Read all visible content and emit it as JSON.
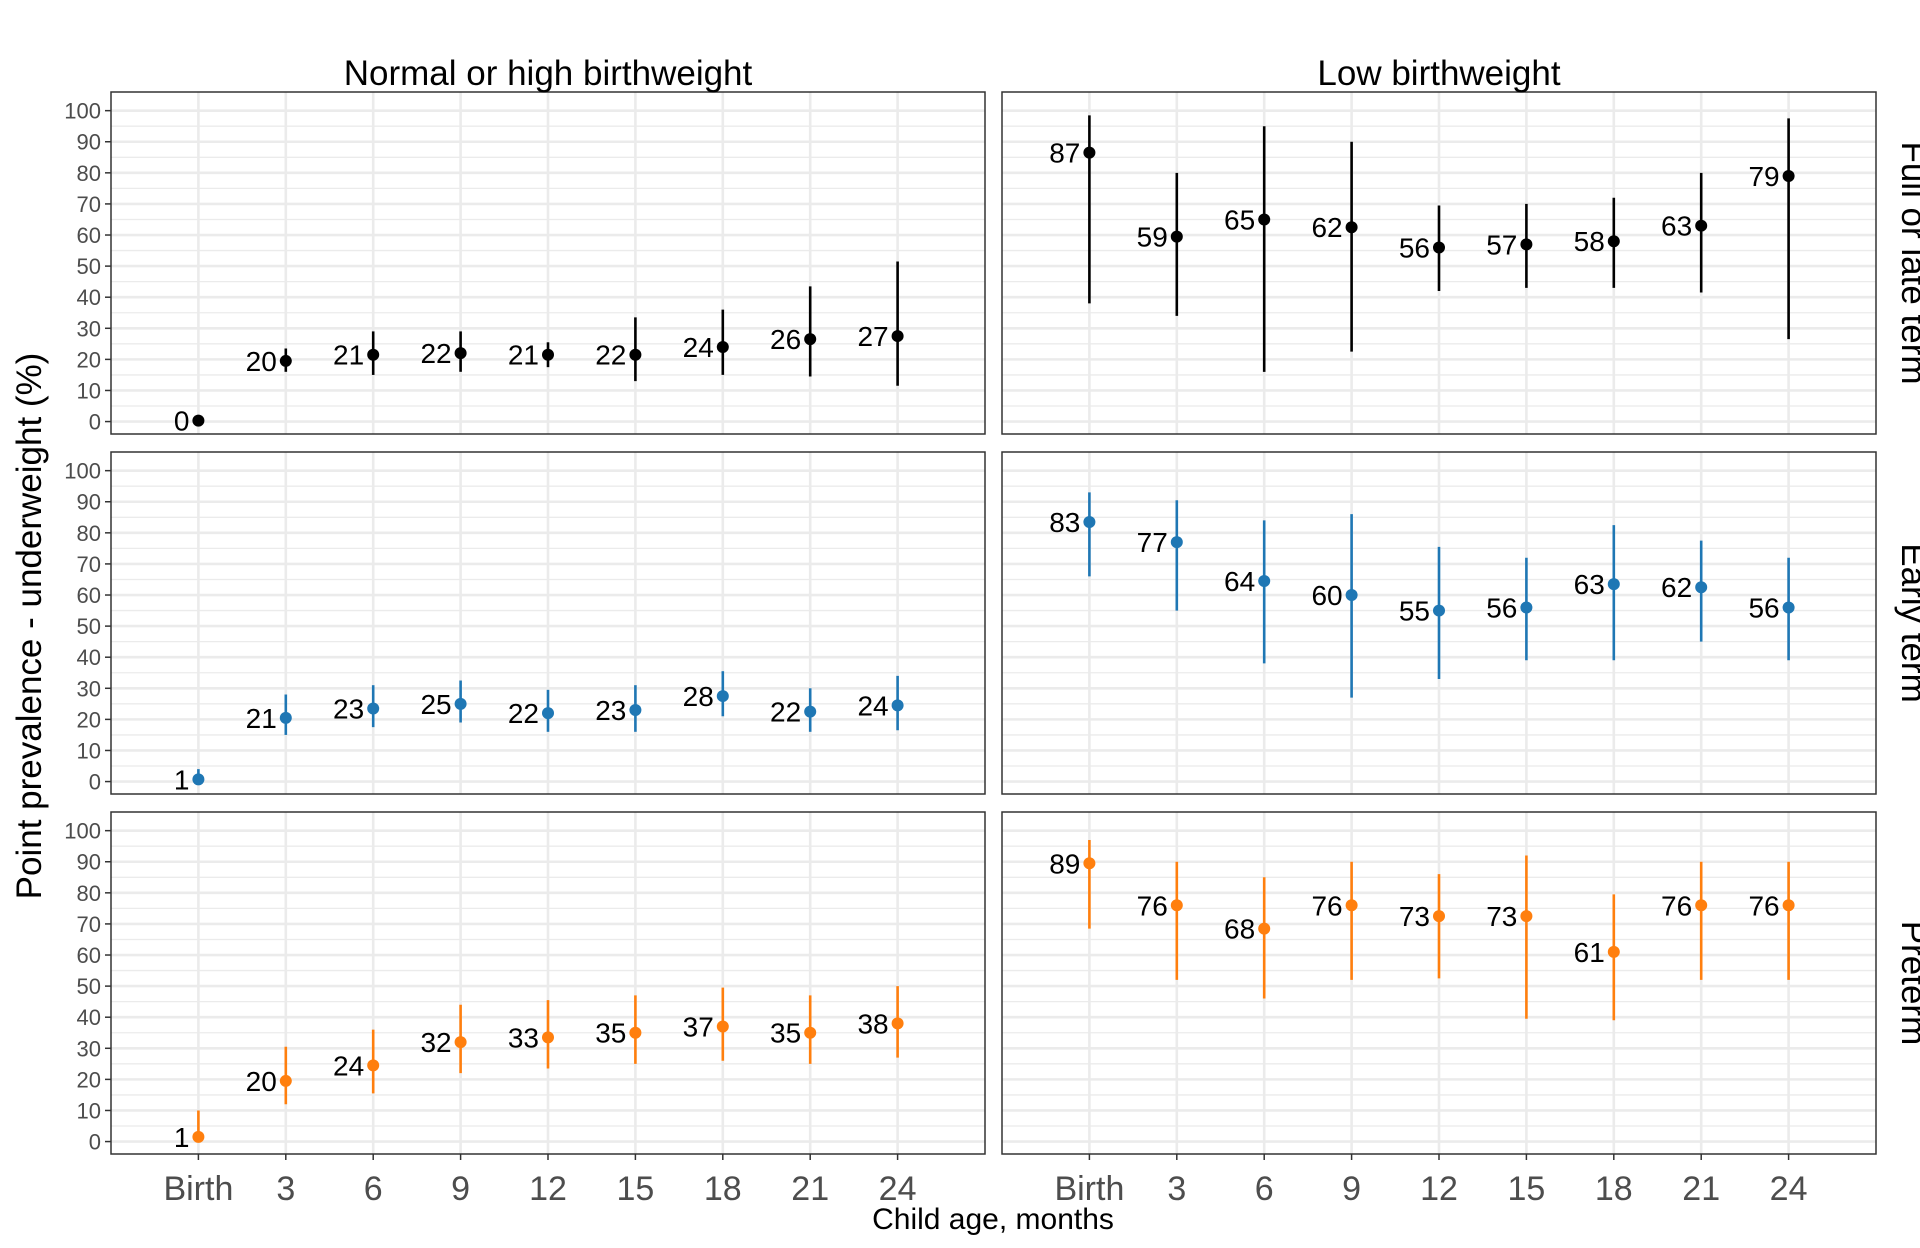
{
  "chart_data": {
    "type": "scatter",
    "ylabel": "Point prevalence - underweight (%)",
    "xlabel": "Child age, months",
    "categories": [
      "Birth",
      "3",
      "6",
      "9",
      "12",
      "15",
      "18",
      "21",
      "24"
    ],
    "yticks": [
      0,
      10,
      20,
      30,
      40,
      50,
      60,
      70,
      80,
      90,
      100
    ],
    "ylim": [
      -4,
      106
    ],
    "grid": true,
    "columns": [
      "Normal or high birthweight",
      "Low birthweight"
    ],
    "rows": [
      {
        "label": "Full or late term",
        "color": "#000000"
      },
      {
        "label": "Early term",
        "color": "#1f77b4"
      },
      {
        "label": "Preterm",
        "color": "#ff7f0e"
      }
    ],
    "panels": [
      {
        "row": 0,
        "col": 0,
        "values": [
          0,
          20,
          21,
          22,
          21,
          22,
          24,
          26,
          27
        ],
        "points": [
          0.3,
          19.5,
          21.5,
          22,
          21.5,
          21.5,
          24,
          26.5,
          27.5
        ],
        "lower": [
          0,
          16,
          15,
          16,
          17.5,
          13,
          15,
          14.5,
          11.5
        ],
        "upper": [
          0.5,
          23.5,
          29,
          29,
          25.5,
          33.5,
          36,
          43.5,
          51.5
        ]
      },
      {
        "row": 0,
        "col": 1,
        "values": [
          87,
          59,
          65,
          62,
          56,
          57,
          58,
          63,
          79
        ],
        "points": [
          86.5,
          59.5,
          65,
          62.5,
          56,
          57,
          58,
          63,
          79
        ],
        "lower": [
          38,
          34,
          16,
          22.5,
          42,
          43,
          43,
          41.5,
          26.5
        ],
        "upper": [
          98.5,
          80,
          95,
          90,
          69.5,
          70,
          72,
          80,
          97.5
        ]
      },
      {
        "row": 1,
        "col": 0,
        "values": [
          1,
          21,
          23,
          25,
          22,
          23,
          28,
          22,
          24
        ],
        "points": [
          0.7,
          20.5,
          23.5,
          25,
          22,
          23,
          27.5,
          22.5,
          24.5
        ],
        "lower": [
          0,
          15,
          17.5,
          19,
          16,
          16,
          21,
          16,
          16.5
        ],
        "upper": [
          4,
          28,
          31,
          32.5,
          29.5,
          31,
          35.5,
          30,
          34
        ]
      },
      {
        "row": 1,
        "col": 1,
        "values": [
          83,
          77,
          64,
          60,
          55,
          56,
          63,
          62,
          56
        ],
        "points": [
          83.5,
          77,
          64.5,
          60,
          55,
          56,
          63.5,
          62.5,
          56
        ],
        "lower": [
          66,
          55,
          38,
          27,
          33,
          39,
          39,
          45,
          39
        ],
        "upper": [
          93,
          90.5,
          84,
          86,
          75.5,
          72,
          82.5,
          77.5,
          72
        ]
      },
      {
        "row": 2,
        "col": 0,
        "values": [
          1,
          20,
          24,
          32,
          33,
          35,
          37,
          35,
          38
        ],
        "points": [
          1.5,
          19.5,
          24.5,
          32,
          33.5,
          35,
          37,
          35,
          38
        ],
        "lower": [
          0,
          12,
          15.5,
          22,
          23.5,
          25,
          26,
          25,
          27
        ],
        "upper": [
          10,
          30.5,
          36,
          44,
          45.5,
          47,
          49.5,
          47,
          50
        ]
      },
      {
        "row": 2,
        "col": 1,
        "values": [
          89,
          76,
          68,
          76,
          73,
          73,
          61,
          76,
          76
        ],
        "points": [
          89.5,
          76,
          68.5,
          76,
          72.5,
          72.5,
          61,
          76,
          76
        ],
        "lower": [
          68.5,
          52,
          46,
          52,
          52.5,
          39.5,
          39,
          52,
          52
        ],
        "upper": [
          97,
          90,
          85,
          90,
          86,
          92,
          79.5,
          90,
          90
        ]
      }
    ]
  }
}
